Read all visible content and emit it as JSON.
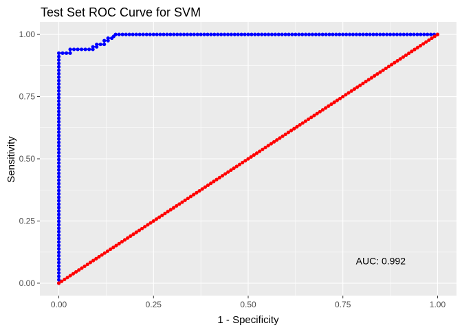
{
  "chart_data": {
    "type": "line",
    "title": "Test Set ROC Curve for SVM",
    "xlabel": "1 - Specificity",
    "ylabel": "Sensitivity",
    "xlim": [
      -0.05,
      1.05
    ],
    "ylim": [
      -0.05,
      1.05
    ],
    "x_ticks": [
      0,
      0.25,
      0.5,
      0.75,
      1
    ],
    "x_tick_labels": [
      "0.00",
      "0.25",
      "0.50",
      "0.75",
      "1.00"
    ],
    "y_ticks": [
      0,
      0.25,
      0.5,
      0.75,
      1
    ],
    "y_tick_labels": [
      "0.00",
      "0.25",
      "0.50",
      "0.75",
      "1.00"
    ],
    "grid": true,
    "background": "#ebebeb",
    "series": [
      {
        "color": "#0000ff",
        "style": "line+points",
        "points": [
          [
            0,
            0
          ],
          [
            0,
            0.925
          ],
          [
            0.01,
            0.925
          ],
          [
            0.02,
            0.925
          ],
          [
            0.03,
            0.925
          ],
          [
            0.03,
            0.94
          ],
          [
            0.04,
            0.94
          ],
          [
            0.05,
            0.94
          ],
          [
            0.06,
            0.94
          ],
          [
            0.07,
            0.94
          ],
          [
            0.08,
            0.94
          ],
          [
            0.09,
            0.94
          ],
          [
            0.09,
            0.95
          ],
          [
            0.1,
            0.95
          ],
          [
            0.1,
            0.96
          ],
          [
            0.11,
            0.96
          ],
          [
            0.12,
            0.96
          ],
          [
            0.12,
            0.975
          ],
          [
            0.13,
            0.975
          ],
          [
            0.13,
            0.985
          ],
          [
            0.14,
            0.985
          ],
          [
            0.15,
            1
          ],
          [
            0.25,
            1
          ],
          [
            0.5,
            1
          ],
          [
            0.75,
            1
          ],
          [
            1,
            1
          ]
        ]
      },
      {
        "color": "#ff0000",
        "style": "line+points",
        "points": [
          [
            0,
            0
          ],
          [
            1,
            1
          ]
        ]
      }
    ],
    "annotations": [
      {
        "label": "AUC:",
        "value": "0.992",
        "x": 0.85,
        "y": 0.09
      }
    ]
  }
}
